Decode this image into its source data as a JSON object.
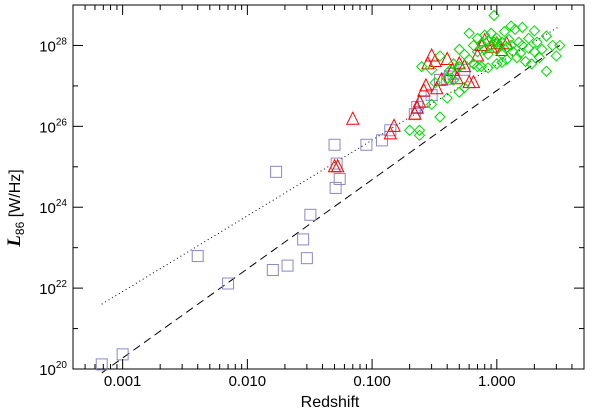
{
  "chart_data": {
    "type": "scatter",
    "xlabel": "Redshift",
    "ylabel": {
      "symbol": "L",
      "subscript": "86",
      "unit": " [W/Hz]"
    },
    "xscale": "log",
    "yscale": "log",
    "xlim": [
      0.0004,
      5.0
    ],
    "ylim": [
      1e+20,
      1e+29
    ],
    "x_ticks": [
      {
        "value": 0.001,
        "label": "0.001"
      },
      {
        "value": 0.01,
        "label": "0.010"
      },
      {
        "value": 0.1,
        "label": "0.100"
      },
      {
        "value": 1.0,
        "label": "1.000"
      }
    ],
    "y_ticks": [
      {
        "value": 1e+20,
        "base": "10",
        "exp": "20"
      },
      {
        "value": 1e+22,
        "base": "10",
        "exp": "22"
      },
      {
        "value": 1e+24,
        "base": "10",
        "exp": "24"
      },
      {
        "value": 1e+26,
        "base": "10",
        "exp": "26"
      },
      {
        "value": 1e+28,
        "base": "10",
        "exp": "28"
      }
    ],
    "grid": false,
    "series": [
      {
        "marker": "square",
        "color": "#8888cc",
        "points": [
          [
            0.00068,
            1.3e+20
          ],
          [
            0.001,
            2.3e+20
          ],
          [
            0.004,
            6.2e+22
          ],
          [
            0.007,
            1.3e+22
          ],
          [
            0.016,
            2.8e+22
          ],
          [
            0.017,
            7.5e+24
          ],
          [
            0.021,
            3.6e+22
          ],
          [
            0.028,
            1.6e+23
          ],
          [
            0.03,
            5.5e+22
          ],
          [
            0.032,
            6.5e+23
          ],
          [
            0.05,
            3.5e+25
          ],
          [
            0.051,
            3e+24
          ],
          [
            0.052,
            1.2e+25
          ],
          [
            0.055,
            5e+24
          ],
          [
            0.09,
            3.5e+25
          ],
          [
            0.12,
            4.5e+25
          ],
          [
            0.14,
            8e+25
          ],
          [
            0.22,
            2e+26
          ],
          [
            0.23,
            3e+26
          ],
          [
            0.26,
            4e+26
          ],
          [
            0.3,
            6e+26
          ],
          [
            0.35,
            1.4e+27
          ],
          [
            0.4,
            1.5e+27
          ],
          [
            0.42,
            1.7e+27
          ],
          [
            0.45,
            2e+27
          ],
          [
            0.55,
            2.5e+27
          ]
        ]
      },
      {
        "marker": "triangle",
        "color": "#ff0000",
        "points": [
          [
            0.05,
            1e+25
          ],
          [
            0.053,
            1e+25
          ],
          [
            0.07,
            1.5e+26
          ],
          [
            0.14,
            6.5e+25
          ],
          [
            0.15,
            1e+26
          ],
          [
            0.22,
            2e+26
          ],
          [
            0.23,
            2.8e+26
          ],
          [
            0.24,
            4e+26
          ],
          [
            0.26,
            7.5e+26
          ],
          [
            0.27,
            1e+27
          ],
          [
            0.28,
            3.5e+27
          ],
          [
            0.3,
            5.5e+27
          ],
          [
            0.32,
            4e+27
          ],
          [
            0.33,
            8.5e+26
          ],
          [
            0.36,
            1.4e+27
          ],
          [
            0.4,
            4.5e+27
          ],
          [
            0.44,
            2.4e+27
          ],
          [
            0.48,
            1.5e+27
          ],
          [
            0.5,
            3.5e+27
          ],
          [
            0.55,
            3e+27
          ],
          [
            0.6,
            1.2e+27
          ],
          [
            0.65,
            1.2e+27
          ],
          [
            0.7,
            5.5e+27
          ],
          [
            0.75,
            1e+28
          ],
          [
            0.8,
            1.3e+28
          ],
          [
            0.9,
            9e+27
          ],
          [
            1.0,
            1.1e+28
          ],
          [
            1.1,
            7.5e+27
          ],
          [
            1.2,
            1.1e+28
          ]
        ]
      },
      {
        "marker": "diamond",
        "color": "#00dd00",
        "points": [
          [
            0.24,
            8e+25
          ],
          [
            0.24,
            6e+25
          ],
          [
            0.3,
            3.5e+26
          ],
          [
            0.35,
            1.7e+26
          ],
          [
            0.35,
            5.5e+27
          ],
          [
            0.4,
            1.5e+27
          ],
          [
            0.42,
            2.4e+27
          ],
          [
            0.45,
            3.5e+27
          ],
          [
            0.5,
            8e+27
          ],
          [
            0.5,
            3e+27
          ],
          [
            0.55,
            6e+27
          ],
          [
            0.6,
            4.5e+27
          ],
          [
            0.6,
            2e+28
          ],
          [
            0.65,
            1e+28
          ],
          [
            0.7,
            7e+27
          ],
          [
            0.7,
            1.5e+28
          ],
          [
            0.75,
            1.1e+28
          ],
          [
            0.8,
            8e+27
          ],
          [
            0.8,
            1.8e+28
          ],
          [
            0.85,
            1.3e+28
          ],
          [
            0.85,
            6e+27
          ],
          [
            0.9,
            1e+28
          ],
          [
            0.9,
            2e+28
          ],
          [
            0.95,
            1.2e+28
          ],
          [
            1.0,
            8e+27
          ],
          [
            1.0,
            1.5e+28
          ],
          [
            1.0,
            1.2e+28
          ],
          [
            1.05,
            1e+28
          ],
          [
            1.1,
            1.2e+28
          ],
          [
            1.1,
            6e+27
          ],
          [
            1.15,
            2.2e+28
          ],
          [
            1.2,
            9e+27
          ],
          [
            1.25,
            1.4e+28
          ],
          [
            1.3,
            1e+28
          ],
          [
            1.35,
            7e+27
          ],
          [
            1.4,
            2.5e+28
          ],
          [
            1.45,
            5e+27
          ],
          [
            1.5,
            1.2e+28
          ],
          [
            1.55,
            6.5e+27
          ],
          [
            1.6,
            1e+28
          ],
          [
            1.7,
            4e+27
          ],
          [
            1.8,
            1.5e+28
          ],
          [
            1.9,
            3.5e+27
          ],
          [
            2.0,
            7e+27
          ],
          [
            2.1,
            1.2e+28
          ],
          [
            2.2,
            5e+27
          ],
          [
            2.3,
            8e+27
          ],
          [
            2.5,
            2.3e+27
          ],
          [
            2.8,
            1e+28
          ],
          [
            3.0,
            5.5e+27
          ],
          [
            0.2,
            8e+25
          ],
          [
            0.45,
            1.4e+27
          ],
          [
            0.5,
            7e+26
          ],
          [
            0.3,
            2.5e+27
          ],
          [
            0.65,
            3.5e+27
          ],
          [
            0.75,
            3e+27
          ],
          [
            1.0,
            3.5e+27
          ],
          [
            1.2,
            4.5e+27
          ],
          [
            0.85,
            2.8e+27
          ],
          [
            0.25,
            3e+27
          ],
          [
            0.32,
            1.2e+27
          ],
          [
            1.3,
            3e+28
          ],
          [
            0.95,
            5.5e+28
          ],
          [
            2.0,
            2.3e+28
          ],
          [
            2.5,
            1.7e+28
          ],
          [
            1.6,
            2.8e+28
          ],
          [
            0.55,
            9e+26
          ],
          [
            0.4,
            5e+26
          ],
          [
            0.7,
            3e+27
          ],
          [
            1.8,
            8.5e+27
          ],
          [
            1.1,
            3.8e+27
          ],
          [
            3.2,
            1e+28
          ]
        ]
      }
    ],
    "lines": [
      {
        "style": "dotted",
        "points": [
          [
            0.00068,
            4e+21
          ],
          [
            3.2,
            3e+28
          ]
        ]
      },
      {
        "style": "dashed",
        "points": [
          [
            0.00068,
            8e+19
          ],
          [
            3.2,
            1e+28
          ]
        ]
      }
    ]
  }
}
